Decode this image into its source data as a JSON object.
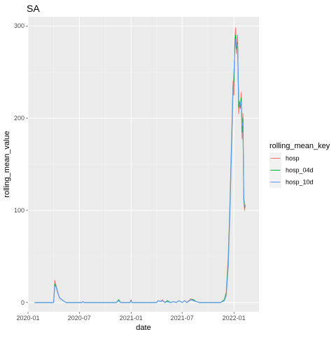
{
  "chart_data": {
    "type": "line",
    "title": "SA",
    "xlabel": "date",
    "ylabel": "rolling_mean_value",
    "x_ticks": [
      "2020-01",
      "2020-07",
      "2021-01",
      "2021-07",
      "2022-01"
    ],
    "y_ticks": [
      0,
      100,
      200,
      300
    ],
    "ylim": [
      -10,
      310
    ],
    "xlim": [
      "2020-01-01",
      "2022-03-31"
    ],
    "grid": true,
    "legend": {
      "title": "rolling_mean_key",
      "position": "right"
    },
    "series": [
      {
        "name": "hosp",
        "color": "#F8766D",
        "points": [
          [
            "2020-01-25",
            0
          ],
          [
            "2020-04-01",
            0
          ],
          [
            "2020-04-05",
            24
          ],
          [
            "2020-04-10",
            18
          ],
          [
            "2020-04-15",
            12
          ],
          [
            "2020-04-22",
            5
          ],
          [
            "2020-05-05",
            2
          ],
          [
            "2020-05-15",
            0
          ],
          [
            "2020-07-10",
            0
          ],
          [
            "2020-07-14",
            1
          ],
          [
            "2020-07-18",
            0
          ],
          [
            "2020-11-10",
            0
          ],
          [
            "2020-11-18",
            3
          ],
          [
            "2020-11-25",
            0
          ],
          [
            "2020-12-28",
            0
          ],
          [
            "2021-01-01",
            3
          ],
          [
            "2021-01-04",
            0
          ],
          [
            "2021-04-01",
            0
          ],
          [
            "2021-04-08",
            2
          ],
          [
            "2021-04-15",
            1
          ],
          [
            "2021-04-22",
            3
          ],
          [
            "2021-05-01",
            0
          ],
          [
            "2021-05-10",
            2
          ],
          [
            "2021-05-20",
            0
          ],
          [
            "2021-06-01",
            1
          ],
          [
            "2021-06-10",
            0
          ],
          [
            "2021-06-20",
            2
          ],
          [
            "2021-07-01",
            0
          ],
          [
            "2021-07-10",
            2
          ],
          [
            "2021-07-18",
            0
          ],
          [
            "2021-08-01",
            4
          ],
          [
            "2021-08-10",
            3
          ],
          [
            "2021-08-20",
            1
          ],
          [
            "2021-09-01",
            0
          ],
          [
            "2021-11-15",
            0
          ],
          [
            "2021-11-28",
            3
          ],
          [
            "2021-12-05",
            12
          ],
          [
            "2021-12-12",
            50
          ],
          [
            "2021-12-18",
            110
          ],
          [
            "2021-12-24",
            180
          ],
          [
            "2021-12-29",
            240
          ],
          [
            "2022-01-01",
            225
          ],
          [
            "2022-01-04",
            285
          ],
          [
            "2022-01-07",
            298
          ],
          [
            "2022-01-10",
            270
          ],
          [
            "2022-01-14",
            290
          ],
          [
            "2022-01-18",
            205
          ],
          [
            "2022-01-21",
            215
          ],
          [
            "2022-01-24",
            210
          ],
          [
            "2022-01-27",
            228
          ],
          [
            "2022-01-30",
            178
          ],
          [
            "2022-02-02",
            205
          ],
          [
            "2022-02-05",
            110
          ],
          [
            "2022-02-08",
            100
          ],
          [
            "2022-02-10",
            106
          ]
        ]
      },
      {
        "name": "hosp_04d",
        "color": "#00BA38",
        "points": [
          [
            "2020-01-25",
            0
          ],
          [
            "2020-04-01",
            0
          ],
          [
            "2020-04-05",
            20
          ],
          [
            "2020-04-10",
            17
          ],
          [
            "2020-04-15",
            11
          ],
          [
            "2020-04-22",
            5
          ],
          [
            "2020-05-05",
            2
          ],
          [
            "2020-05-15",
            0
          ],
          [
            "2020-07-10",
            0
          ],
          [
            "2020-07-14",
            1
          ],
          [
            "2020-07-18",
            0
          ],
          [
            "2020-11-10",
            0
          ],
          [
            "2020-11-18",
            3
          ],
          [
            "2020-11-25",
            0
          ],
          [
            "2020-12-28",
            0
          ],
          [
            "2021-01-01",
            2
          ],
          [
            "2021-01-04",
            0
          ],
          [
            "2021-04-01",
            0
          ],
          [
            "2021-04-08",
            2
          ],
          [
            "2021-04-15",
            1
          ],
          [
            "2021-04-22",
            2
          ],
          [
            "2021-05-01",
            0
          ],
          [
            "2021-05-10",
            2
          ],
          [
            "2021-05-20",
            0
          ],
          [
            "2021-06-01",
            1
          ],
          [
            "2021-06-10",
            0
          ],
          [
            "2021-06-20",
            2
          ],
          [
            "2021-07-01",
            0
          ],
          [
            "2021-07-10",
            2
          ],
          [
            "2021-07-18",
            0
          ],
          [
            "2021-08-01",
            3
          ],
          [
            "2021-08-10",
            3
          ],
          [
            "2021-08-20",
            1
          ],
          [
            "2021-09-01",
            0
          ],
          [
            "2021-11-15",
            0
          ],
          [
            "2021-11-28",
            3
          ],
          [
            "2021-12-05",
            10
          ],
          [
            "2021-12-12",
            45
          ],
          [
            "2021-12-18",
            105
          ],
          [
            "2021-12-24",
            175
          ],
          [
            "2021-12-29",
            235
          ],
          [
            "2022-01-01",
            240
          ],
          [
            "2022-01-04",
            278
          ],
          [
            "2022-01-07",
            290
          ],
          [
            "2022-01-10",
            275
          ],
          [
            "2022-01-14",
            282
          ],
          [
            "2022-01-18",
            212
          ],
          [
            "2022-01-21",
            218
          ],
          [
            "2022-01-24",
            212
          ],
          [
            "2022-01-27",
            222
          ],
          [
            "2022-01-30",
            185
          ],
          [
            "2022-02-02",
            200
          ],
          [
            "2022-02-05",
            112
          ],
          [
            "2022-02-08",
            103
          ],
          [
            "2022-02-10",
            105
          ]
        ]
      },
      {
        "name": "hosp_10d",
        "color": "#619CFF",
        "points": [
          [
            "2020-01-25",
            0
          ],
          [
            "2020-04-01",
            0
          ],
          [
            "2020-04-05",
            18
          ],
          [
            "2020-04-10",
            17
          ],
          [
            "2020-04-15",
            11
          ],
          [
            "2020-04-22",
            5
          ],
          [
            "2020-05-05",
            2
          ],
          [
            "2020-05-15",
            0
          ],
          [
            "2020-07-10",
            0
          ],
          [
            "2020-07-14",
            1
          ],
          [
            "2020-07-18",
            0
          ],
          [
            "2020-11-10",
            0
          ],
          [
            "2020-11-18",
            2
          ],
          [
            "2020-11-25",
            0
          ],
          [
            "2020-12-28",
            0
          ],
          [
            "2021-01-01",
            2
          ],
          [
            "2021-01-04",
            0
          ],
          [
            "2021-04-01",
            0
          ],
          [
            "2021-04-08",
            2
          ],
          [
            "2021-04-15",
            1
          ],
          [
            "2021-04-22",
            2
          ],
          [
            "2021-05-01",
            0
          ],
          [
            "2021-05-10",
            1
          ],
          [
            "2021-05-20",
            0
          ],
          [
            "2021-06-01",
            1
          ],
          [
            "2021-06-10",
            0
          ],
          [
            "2021-06-20",
            2
          ],
          [
            "2021-07-01",
            0
          ],
          [
            "2021-07-10",
            2
          ],
          [
            "2021-07-18",
            0
          ],
          [
            "2021-08-01",
            3
          ],
          [
            "2021-08-10",
            2
          ],
          [
            "2021-08-20",
            1
          ],
          [
            "2021-09-01",
            0
          ],
          [
            "2021-11-15",
            0
          ],
          [
            "2021-11-28",
            2
          ],
          [
            "2021-12-05",
            8
          ],
          [
            "2021-12-12",
            40
          ],
          [
            "2021-12-18",
            100
          ],
          [
            "2021-12-24",
            170
          ],
          [
            "2021-12-29",
            230
          ],
          [
            "2022-01-01",
            250
          ],
          [
            "2022-01-04",
            272
          ],
          [
            "2022-01-07",
            285
          ],
          [
            "2022-01-10",
            278
          ],
          [
            "2022-01-14",
            280
          ],
          [
            "2022-01-18",
            220
          ],
          [
            "2022-01-21",
            215
          ],
          [
            "2022-01-24",
            214
          ],
          [
            "2022-01-27",
            218
          ],
          [
            "2022-01-30",
            192
          ],
          [
            "2022-02-02",
            195
          ],
          [
            "2022-02-05",
            115
          ],
          [
            "2022-02-08",
            105
          ],
          [
            "2022-02-10",
            104
          ]
        ]
      }
    ]
  }
}
